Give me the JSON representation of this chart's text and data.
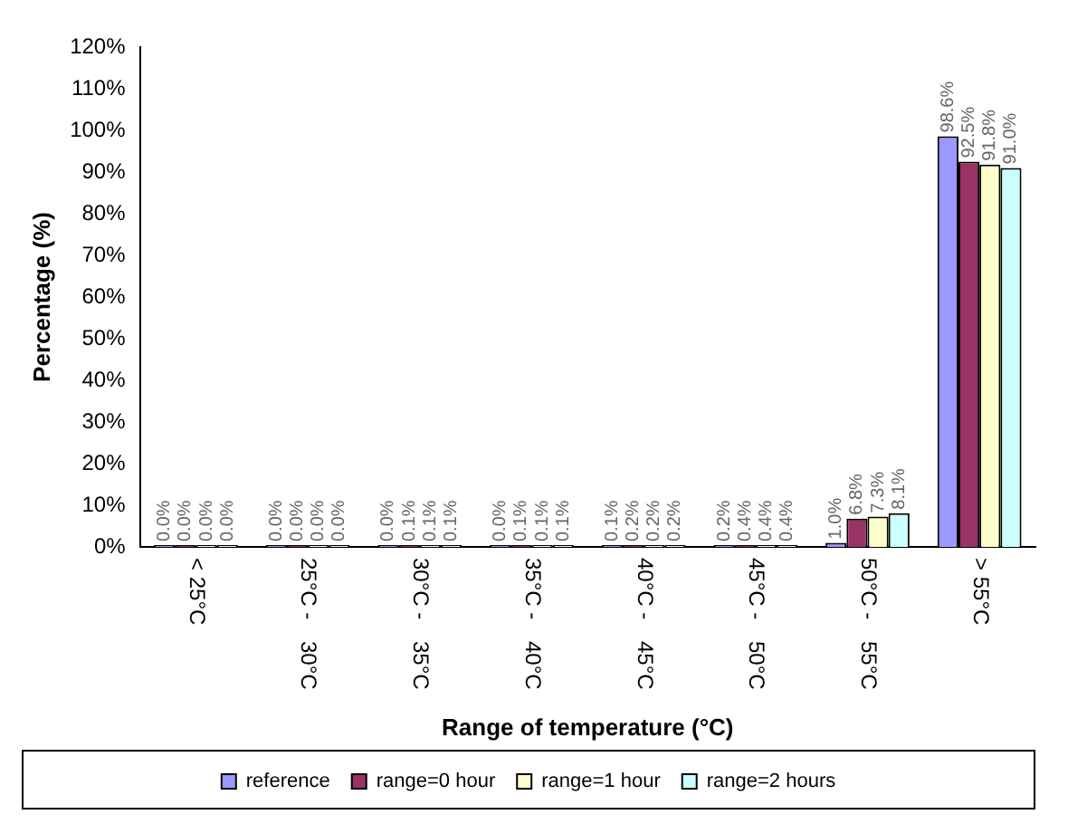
{
  "chart_data": {
    "type": "bar",
    "xlabel": "Range of temperature (°C)",
    "ylabel": "Percentage (%)",
    "categories": [
      "< 25°C",
      "25°C - 30°C",
      "30°C - 35°C",
      "35°C - 40°C",
      "40°C - 45°C",
      "45°C - 50°C",
      "50°C - 55°C",
      "> 55°C"
    ],
    "series": [
      {
        "name": "reference",
        "color": "#9999ff",
        "values": [
          0.0,
          0.0,
          0.0,
          0.0,
          0.1,
          0.2,
          1.0,
          98.6
        ],
        "value_labels": [
          "0.0%",
          "0.0%",
          "0.0%",
          "0.0%",
          "0.1%",
          "0.2%",
          "1.0%",
          "98.6%"
        ]
      },
      {
        "name": "range=0 hour",
        "color": "#993366",
        "values": [
          0.0,
          0.0,
          0.1,
          0.1,
          0.2,
          0.4,
          6.8,
          92.5
        ],
        "value_labels": [
          "0.0%",
          "0.0%",
          "0.1%",
          "0.1%",
          "0.2%",
          "0.4%",
          "6.8%",
          "92.5%"
        ]
      },
      {
        "name": "range=1 hour",
        "color": "#ffffcc",
        "values": [
          0.0,
          0.0,
          0.1,
          0.1,
          0.2,
          0.4,
          7.3,
          91.8
        ],
        "value_labels": [
          "0.0%",
          "0.0%",
          "0.1%",
          "0.1%",
          "0.2%",
          "0.4%",
          "7.3%",
          "91.8%"
        ]
      },
      {
        "name": "range=2 hours",
        "color": "#ccffff",
        "values": [
          0.0,
          0.0,
          0.1,
          0.1,
          0.2,
          0.4,
          8.1,
          91.0
        ],
        "value_labels": [
          "0.0%",
          "0.0%",
          "0.1%",
          "0.1%",
          "0.2%",
          "0.4%",
          "8.1%",
          "91.0%"
        ]
      }
    ],
    "ylim": [
      0,
      120
    ],
    "yticks": [
      {
        "value": 0,
        "label": "0%"
      },
      {
        "value": 10,
        "label": "10%"
      },
      {
        "value": 20,
        "label": "20%"
      },
      {
        "value": 30,
        "label": "30%"
      },
      {
        "value": 40,
        "label": "40%"
      },
      {
        "value": 50,
        "label": "50%"
      },
      {
        "value": 60,
        "label": "60%"
      },
      {
        "value": 70,
        "label": "70%"
      },
      {
        "value": 80,
        "label": "80%"
      },
      {
        "value": 90,
        "label": "90%"
      },
      {
        "value": 100,
        "label": "100%"
      },
      {
        "value": 110,
        "label": "110%"
      },
      {
        "value": 120,
        "label": "120%"
      }
    ],
    "grid": false,
    "legend": "bottom"
  }
}
